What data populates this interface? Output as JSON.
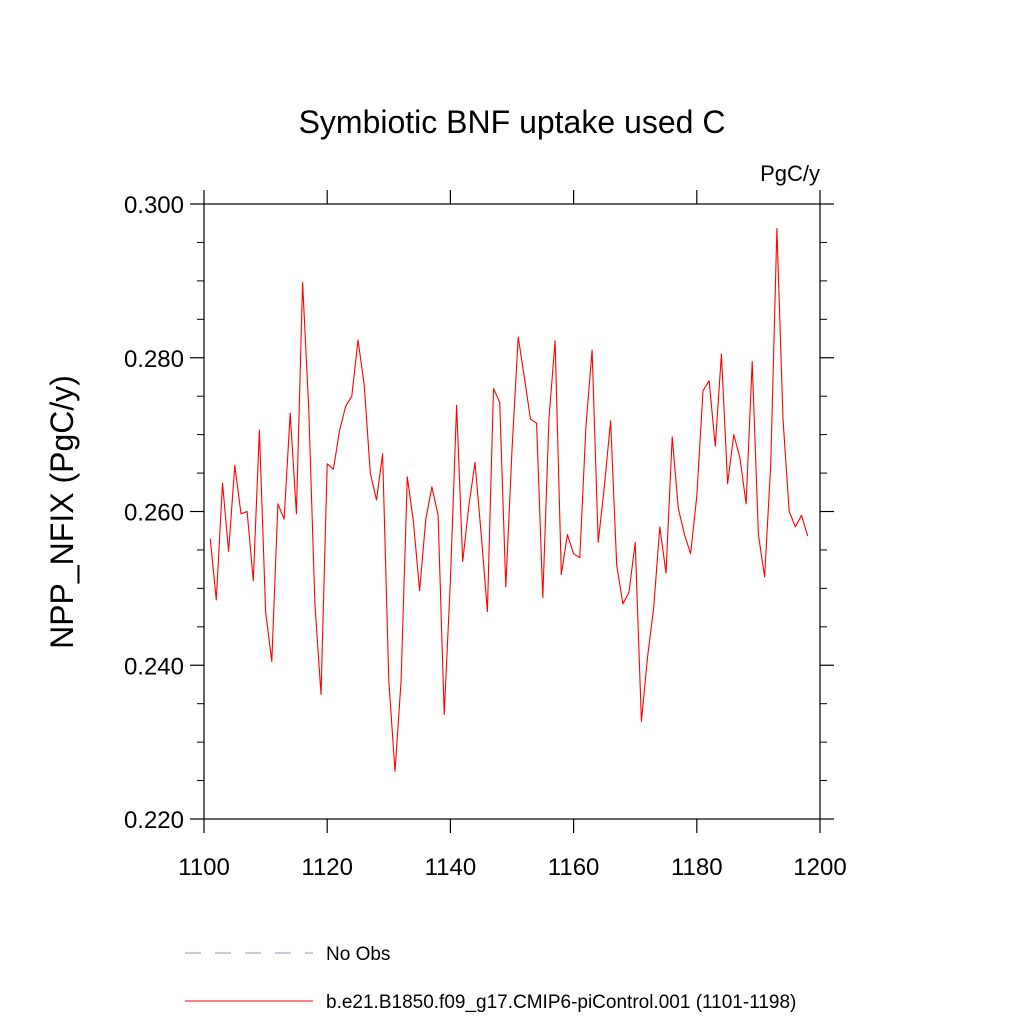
{
  "chart_data": {
    "type": "line",
    "title": "Symbiotic BNF uptake used C",
    "units": "PgC/y",
    "ylabel": "NPP_NFIX  (PgC/y)",
    "xlabel": "",
    "xlim": [
      1100,
      1200
    ],
    "ylim": [
      0.22,
      0.3
    ],
    "x_ticks": [
      1100,
      1120,
      1140,
      1160,
      1180,
      1200
    ],
    "x_tick_labels": [
      "1100",
      "1120",
      "1140",
      "1160",
      "1180",
      "1200"
    ],
    "y_ticks": [
      0.22,
      0.24,
      0.26,
      0.28,
      0.3
    ],
    "y_tick_labels": [
      "0.220",
      "0.240",
      "0.260",
      "0.280",
      "0.300"
    ],
    "grid": false,
    "legend_placement": "bottom",
    "series": [
      {
        "name": "b.e21.B1850.f09_g17.CMIP6-piControl.001 (1101-1198)",
        "color": "#ff0000",
        "style": "solid",
        "x": [
          1101,
          1102,
          1103,
          1104,
          1105,
          1106,
          1107,
          1108,
          1109,
          1110,
          1111,
          1112,
          1113,
          1114,
          1115,
          1116,
          1117,
          1118,
          1119,
          1120,
          1121,
          1122,
          1123,
          1124,
          1125,
          1126,
          1127,
          1128,
          1129,
          1130,
          1131,
          1132,
          1133,
          1134,
          1135,
          1136,
          1137,
          1138,
          1139,
          1140,
          1141,
          1142,
          1143,
          1144,
          1145,
          1146,
          1147,
          1148,
          1149,
          1150,
          1151,
          1152,
          1153,
          1154,
          1155,
          1156,
          1157,
          1158,
          1159,
          1160,
          1161,
          1162,
          1163,
          1164,
          1165,
          1166,
          1167,
          1168,
          1169,
          1170,
          1171,
          1172,
          1173,
          1174,
          1175,
          1176,
          1177,
          1178,
          1179,
          1180,
          1181,
          1182,
          1183,
          1184,
          1185,
          1186,
          1187,
          1188,
          1189,
          1190,
          1191,
          1192,
          1193,
          1194,
          1195,
          1196,
          1197,
          1198
        ],
        "values": [
          0.2565,
          0.2485,
          0.2637,
          0.2548,
          0.266,
          0.2597,
          0.26,
          0.251,
          0.2706,
          0.247,
          0.2405,
          0.261,
          0.259,
          0.2728,
          0.2597,
          0.2898,
          0.2735,
          0.248,
          0.2362,
          0.2662,
          0.2655,
          0.2705,
          0.2737,
          0.275,
          0.2823,
          0.2765,
          0.265,
          0.2615,
          0.2675,
          0.238,
          0.2262,
          0.238,
          0.2645,
          0.2587,
          0.2497,
          0.259,
          0.2632,
          0.2595,
          0.2336,
          0.251,
          0.2738,
          0.2535,
          0.2608,
          0.2664,
          0.257,
          0.247,
          0.276,
          0.2742,
          0.2502,
          0.268,
          0.2827,
          0.2775,
          0.272,
          0.2715,
          0.2488,
          0.2722,
          0.2822,
          0.2518,
          0.257,
          0.2545,
          0.254,
          0.271,
          0.281,
          0.256,
          0.2633,
          0.2718,
          0.253,
          0.248,
          0.2495,
          0.256,
          0.2327,
          0.241,
          0.2475,
          0.258,
          0.252,
          0.2697,
          0.2604,
          0.257,
          0.2545,
          0.262,
          0.2757,
          0.277,
          0.2685,
          0.2805,
          0.2636,
          0.27,
          0.267,
          0.261,
          0.2795,
          0.257,
          0.2515,
          0.266,
          0.2968,
          0.272,
          0.26,
          0.258,
          0.2595,
          0.2568
        ]
      }
    ],
    "legend": [
      {
        "label": "No Obs",
        "color": "#9a8ccc",
        "style": "dashed"
      },
      {
        "label": "b.e21.B1850.f09_g17.CMIP6-piControl.001 (1101-1198)",
        "color": "#ff0000",
        "style": "solid"
      }
    ]
  }
}
